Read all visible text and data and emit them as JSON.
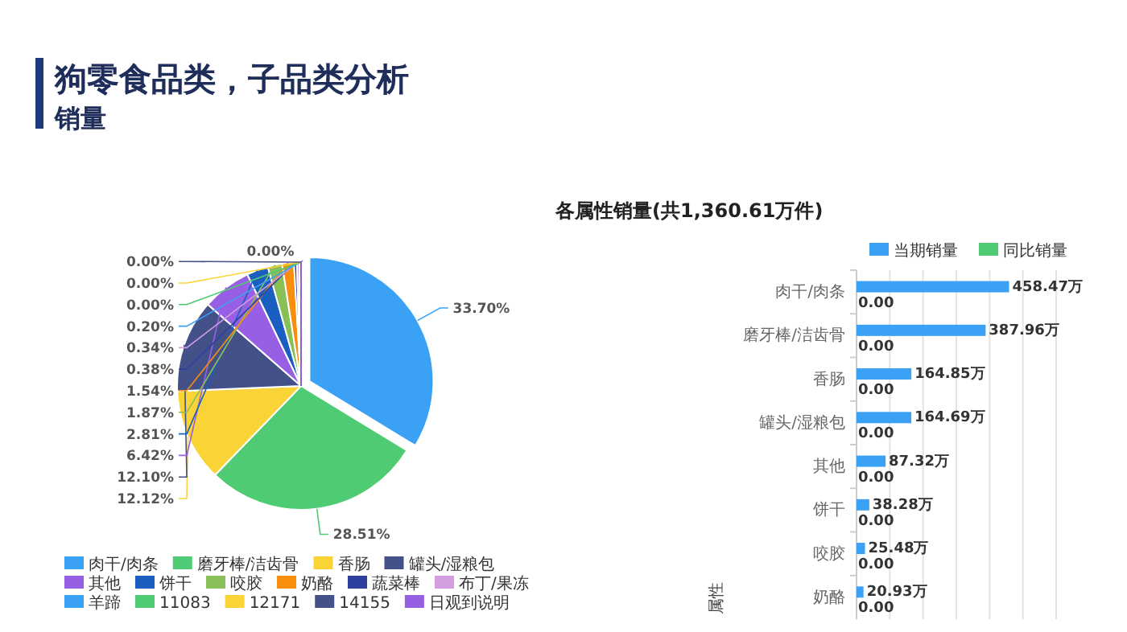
{
  "chart_data": [
    {
      "type": "pie",
      "title": "狗零食品类，子品类分析",
      "subtitle": "销量",
      "categories": [
        "肉干/肉条",
        "磨牙棒/洁齿骨",
        "香肠",
        "罐头/湿粮包",
        "其他",
        "饼干",
        "咬胶",
        "奶酪",
        "蔬菜棒",
        "布丁/果冻",
        "羊蹄",
        "11083",
        "12171",
        "14155",
        "日观到说明"
      ],
      "values": [
        33.7,
        28.51,
        12.12,
        12.1,
        6.42,
        2.81,
        1.87,
        1.54,
        0.38,
        0.34,
        0.2,
        0.0,
        0.0,
        0.0,
        0.0
      ],
      "colors": [
        "#3ba1f5",
        "#4ecb73",
        "#fad337",
        "#435188",
        "#975fe4",
        "#1a5fbf",
        "#88c057",
        "#f88d0e",
        "#2f3fa0",
        "#d39de0",
        "#3ba1f5",
        "#4ecb73",
        "#fad337",
        "#435188",
        "#975fe4"
      ],
      "value_labels": [
        "33.70%",
        "28.51%",
        "12.12%",
        "12.10%",
        "6.42%",
        "2.81%",
        "1.87%",
        "1.54%",
        "0.38%",
        "0.34%",
        "0.20%",
        "0.00%",
        "0.00%",
        "0.00%",
        "0.00%"
      ],
      "legend": "bottom"
    },
    {
      "type": "bar",
      "orientation": "horizontal",
      "title": "各属性销量(共1,360.61万件)",
      "ylabel": "属性",
      "categories": [
        "肉干/肉条",
        "磨牙棒/洁齿骨",
        "香肠",
        "罐头/湿粮包",
        "其他",
        "饼干",
        "咬胶",
        "奶酪"
      ],
      "series": [
        {
          "name": "当期销量",
          "color": "#3ba1f5",
          "values": [
            458.47,
            387.96,
            164.85,
            164.69,
            87.32,
            38.28,
            25.48,
            20.93
          ],
          "value_labels": [
            "458.47万",
            "387.96万",
            "164.85万",
            "164.69万",
            "87.32万",
            "38.28万",
            "25.48万",
            "20.93万"
          ]
        },
        {
          "name": "同比销量",
          "color": "#4ecb73",
          "values": [
            0,
            0,
            0,
            0,
            0,
            0,
            0,
            0
          ],
          "value_labels": [
            "0.00",
            "0.00",
            "0.00",
            "0.00",
            "0.00",
            "0.00",
            "0.00",
            "0.00"
          ]
        }
      ],
      "xlim": [
        0,
        600
      ],
      "xticks": [
        {
          "value": 0,
          "label": null
        },
        {
          "value": 100,
          "label": null
        },
        {
          "value": 200,
          "label": null
        },
        {
          "value": 300,
          "label": null
        },
        {
          "value": 400,
          "label": null
        },
        {
          "value": 500,
          "label": null
        },
        {
          "value": 600,
          "label": null
        }
      ],
      "grid": "x",
      "legend": "top right"
    }
  ]
}
